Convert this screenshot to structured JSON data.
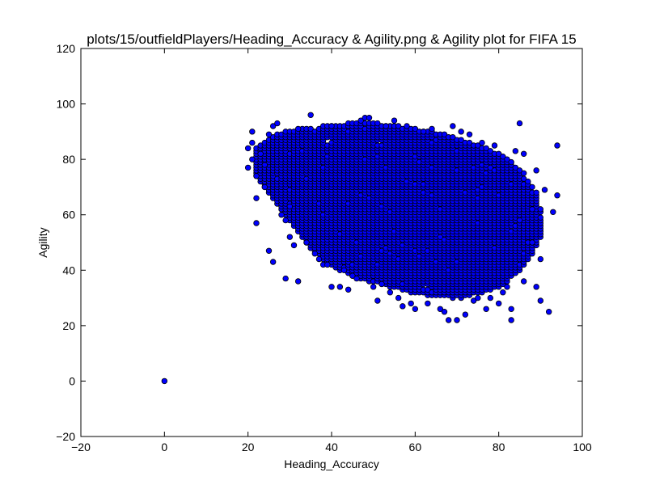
{
  "chart_data": {
    "type": "scatter",
    "title": "plots/15/outfieldPlayers/Heading_Accuracy & Agility.png & Agility plot for FIFA 15",
    "xlabel": "Heading_Accuracy",
    "ylabel": "Agility",
    "xlim": [
      -20,
      100
    ],
    "ylim": [
      -20,
      120
    ],
    "xticks": [
      "−20",
      "0",
      "20",
      "40",
      "60",
      "80",
      "100"
    ],
    "yticks": [
      "−20",
      "0",
      "20",
      "40",
      "60",
      "80",
      "100",
      "120"
    ],
    "grid": false,
    "marker_color": "#0000ff",
    "edge_color": "#000000",
    "points": [
      [
        0,
        0
      ],
      [
        20,
        77
      ],
      [
        20,
        84
      ],
      [
        21,
        86
      ],
      [
        21,
        90
      ],
      [
        21,
        80
      ],
      [
        22,
        66
      ],
      [
        22,
        57
      ],
      [
        22,
        74
      ],
      [
        23,
        82
      ],
      [
        24,
        70
      ],
      [
        24,
        78
      ],
      [
        25,
        47
      ],
      [
        25,
        89
      ],
      [
        26,
        92
      ],
      [
        26,
        43
      ],
      [
        27,
        93
      ],
      [
        28,
        60
      ],
      [
        29,
        37
      ],
      [
        29,
        58
      ],
      [
        30,
        52
      ],
      [
        30,
        63
      ],
      [
        31,
        49
      ],
      [
        32,
        36
      ],
      [
        32,
        91
      ],
      [
        34,
        50
      ],
      [
        35,
        96
      ],
      [
        36,
        46
      ],
      [
        37,
        44
      ],
      [
        38,
        42
      ],
      [
        39,
        42
      ],
      [
        40,
        34
      ],
      [
        40,
        92
      ],
      [
        42,
        34
      ],
      [
        43,
        40
      ],
      [
        44,
        33
      ],
      [
        45,
        38
      ],
      [
        46,
        37
      ],
      [
        47,
        94
      ],
      [
        48,
        95
      ],
      [
        49,
        95
      ],
      [
        50,
        34
      ],
      [
        51,
        29
      ],
      [
        52,
        35
      ],
      [
        53,
        92
      ],
      [
        54,
        32
      ],
      [
        55,
        94
      ],
      [
        56,
        30
      ],
      [
        57,
        27
      ],
      [
        58,
        92
      ],
      [
        59,
        28
      ],
      [
        60,
        26
      ],
      [
        62,
        90
      ],
      [
        63,
        28
      ],
      [
        64,
        91
      ],
      [
        66,
        26
      ],
      [
        67,
        25
      ],
      [
        68,
        22
      ],
      [
        69,
        92
      ],
      [
        70,
        22
      ],
      [
        71,
        90
      ],
      [
        72,
        24
      ],
      [
        73,
        89
      ],
      [
        74,
        29
      ],
      [
        75,
        30
      ],
      [
        76,
        86
      ],
      [
        77,
        26
      ],
      [
        78,
        30
      ],
      [
        79,
        85
      ],
      [
        80,
        28
      ],
      [
        81,
        32
      ],
      [
        82,
        34
      ],
      [
        83,
        22
      ],
      [
        83,
        26
      ],
      [
        84,
        83
      ],
      [
        85,
        93
      ],
      [
        85,
        58
      ],
      [
        86,
        36
      ],
      [
        86,
        82
      ],
      [
        87,
        50
      ],
      [
        88,
        50
      ],
      [
        88,
        62
      ],
      [
        89,
        34
      ],
      [
        89,
        76
      ],
      [
        90,
        29
      ],
      [
        90,
        44
      ],
      [
        91,
        69
      ],
      [
        92,
        25
      ],
      [
        93,
        61
      ],
      [
        94,
        85
      ],
      [
        94,
        67
      ]
    ],
    "cloud": {
      "x_range": [
        22,
        90
      ],
      "y_range": [
        28,
        92
      ],
      "density": 0.97
    }
  }
}
